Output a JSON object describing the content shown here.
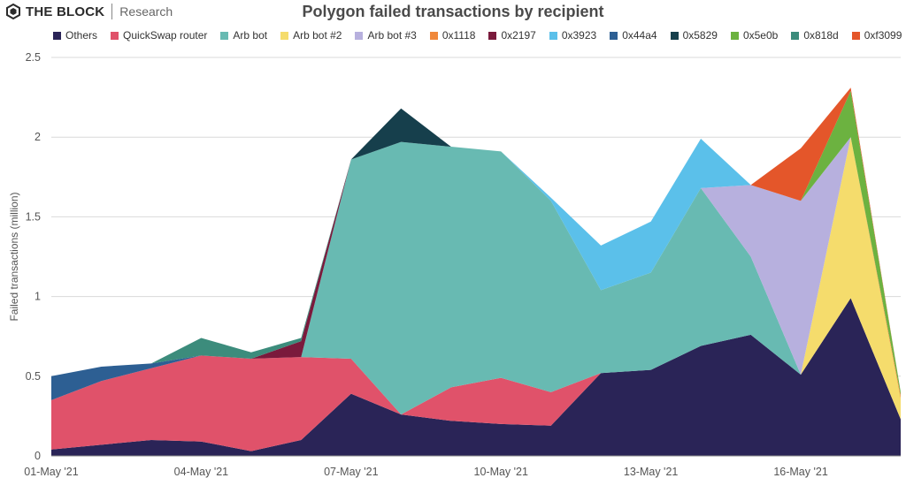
{
  "brand": {
    "name": "THE BLOCK",
    "sub": "Research",
    "logo_icon": "block-logo-icon"
  },
  "chart_data": {
    "type": "area",
    "stacked": true,
    "title": "Polygon failed transactions by recipient",
    "ylabel": "Failed transactions (million)",
    "xlabel": "",
    "ylim": [
      0,
      2.5
    ],
    "yticks": [
      "0",
      "0.5",
      "1",
      "1.5",
      "2",
      "2.5"
    ],
    "ytick_values": [
      0,
      0.5,
      1,
      1.5,
      2,
      2.5
    ],
    "grid": true,
    "legend": "top",
    "x": [
      "01-May '21",
      "02-May '21",
      "03-May '21",
      "04-May '21",
      "05-May '21",
      "06-May '21",
      "07-May '21",
      "08-May '21",
      "09-May '21",
      "10-May '21",
      "11-May '21",
      "12-May '21",
      "13-May '21",
      "14-May '21",
      "15-May '21",
      "16-May '21",
      "17-May '21",
      "18-May '21"
    ],
    "xtick_labels": [
      "01-May '21",
      "04-May '21",
      "07-May '21",
      "10-May '21",
      "13-May '21",
      "16-May '21"
    ],
    "xtick_index": [
      0,
      3,
      6,
      9,
      12,
      15
    ],
    "series": [
      {
        "name": "Others",
        "color": "#2a2457",
        "values": [
          0.04,
          0.07,
          0.1,
          0.09,
          0.03,
          0.1,
          0.39,
          0.26,
          0.22,
          0.2,
          0.19,
          0.52,
          0.54,
          0.69,
          0.76,
          0.51,
          0.99,
          0.23
        ]
      },
      {
        "name": "QuickSwap router",
        "color": "#e0526a",
        "values": [
          0.31,
          0.4,
          0.45,
          0.54,
          0.58,
          0.52,
          0.22,
          0.0,
          0.21,
          0.29,
          0.21,
          0.0,
          0.0,
          0.0,
          0.0,
          0.0,
          0.0,
          0.0
        ]
      },
      {
        "name": "Arb bot",
        "color": "#68bab2",
        "values": [
          0.0,
          0.0,
          0.0,
          0.0,
          0.0,
          0.0,
          1.25,
          1.71,
          1.51,
          1.42,
          1.2,
          0.52,
          0.61,
          0.99,
          0.49,
          0.0,
          0.0,
          0.0
        ]
      },
      {
        "name": "Arb bot #2",
        "color": "#f5dc6c",
        "values": [
          0,
          0,
          0,
          0,
          0,
          0,
          0,
          0,
          0,
          0,
          0,
          0,
          0,
          0,
          0,
          0,
          1.01,
          0.13
        ]
      },
      {
        "name": "Arb bot #3",
        "color": "#b7b0de",
        "values": [
          0,
          0,
          0,
          0,
          0,
          0,
          0,
          0,
          0,
          0,
          0,
          0,
          0,
          0,
          0.45,
          1.09,
          0,
          0
        ]
      },
      {
        "name": "0x1118",
        "color": "#f0883a",
        "values": [
          0,
          0,
          0,
          0,
          0,
          0,
          0,
          0,
          0,
          0,
          0,
          0,
          0,
          0,
          0,
          0,
          0,
          0.02
        ]
      },
      {
        "name": "0x2197",
        "color": "#7a1a3c",
        "values": [
          0,
          0,
          0,
          0,
          0.0,
          0.1,
          0,
          0,
          0,
          0,
          0,
          0,
          0,
          0,
          0,
          0,
          0,
          0
        ]
      },
      {
        "name": "0x3923",
        "color": "#5bc0ea",
        "values": [
          0,
          0,
          0,
          0,
          0,
          0,
          0,
          0,
          0,
          0,
          0.02,
          0.28,
          0.32,
          0.31,
          0,
          0,
          0,
          0
        ]
      },
      {
        "name": "0x44a4",
        "color": "#2d5f93",
        "values": [
          0.15,
          0.09,
          0.03,
          0,
          0,
          0,
          0,
          0,
          0,
          0,
          0,
          0,
          0,
          0,
          0,
          0,
          0,
          0
        ]
      },
      {
        "name": "0x5829",
        "color": "#163f4c",
        "values": [
          0,
          0,
          0,
          0,
          0,
          0,
          0,
          0.21,
          0.0,
          0,
          0,
          0,
          0,
          0,
          0,
          0,
          0,
          0
        ]
      },
      {
        "name": "0x5e0b",
        "color": "#6cb240",
        "values": [
          0,
          0,
          0,
          0,
          0,
          0,
          0,
          0,
          0,
          0,
          0,
          0,
          0,
          0,
          0,
          0,
          0.29,
          0.02
        ]
      },
      {
        "name": "0x818d",
        "color": "#3c8c7c",
        "values": [
          0,
          0,
          0,
          0.11,
          0.04,
          0.02,
          0,
          0,
          0,
          0,
          0,
          0,
          0,
          0,
          0,
          0,
          0,
          0
        ]
      },
      {
        "name": "0xf3099",
        "color": "#e4562a",
        "values": [
          0,
          0,
          0,
          0,
          0,
          0,
          0,
          0,
          0,
          0,
          0,
          0,
          0,
          0,
          0,
          0.33,
          0.02,
          0
        ]
      }
    ]
  }
}
